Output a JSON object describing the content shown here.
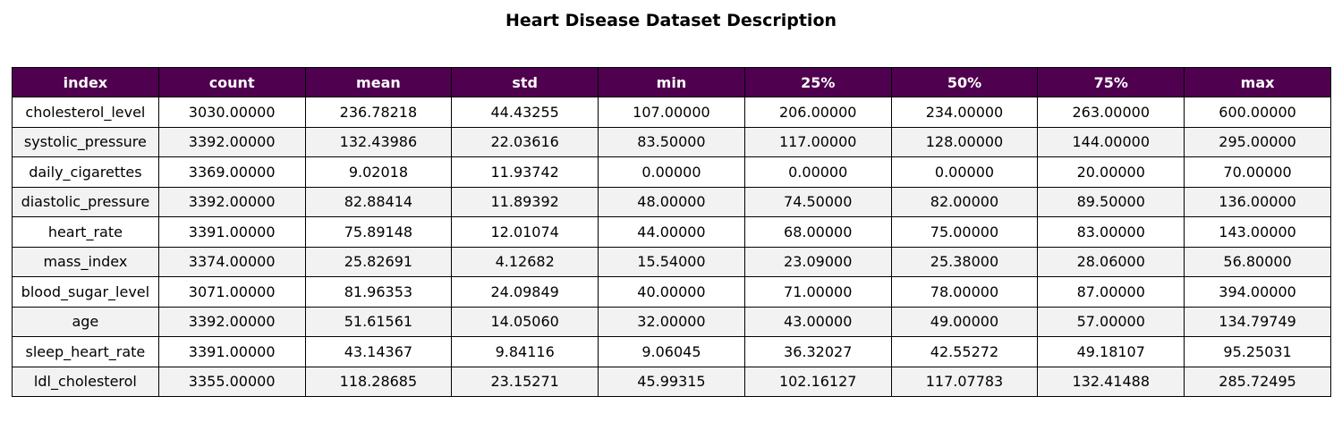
{
  "chart_data": {
    "type": "table",
    "title": "Heart Disease Dataset Description",
    "columns": [
      "index",
      "count",
      "mean",
      "std",
      "min",
      "25%",
      "50%",
      "75%",
      "max"
    ],
    "rows": [
      [
        "cholesterol_level",
        "3030.00000",
        "236.78218",
        "44.43255",
        "107.00000",
        "206.00000",
        "234.00000",
        "263.00000",
        "600.00000"
      ],
      [
        "systolic_pressure",
        "3392.00000",
        "132.43986",
        "22.03616",
        "83.50000",
        "117.00000",
        "128.00000",
        "144.00000",
        "295.00000"
      ],
      [
        "daily_cigarettes",
        "3369.00000",
        "9.02018",
        "11.93742",
        "0.00000",
        "0.00000",
        "0.00000",
        "20.00000",
        "70.00000"
      ],
      [
        "diastolic_pressure",
        "3392.00000",
        "82.88414",
        "11.89392",
        "48.00000",
        "74.50000",
        "82.00000",
        "89.50000",
        "136.00000"
      ],
      [
        "heart_rate",
        "3391.00000",
        "75.89148",
        "12.01074",
        "44.00000",
        "68.00000",
        "75.00000",
        "83.00000",
        "143.00000"
      ],
      [
        "mass_index",
        "3374.00000",
        "25.82691",
        "4.12682",
        "15.54000",
        "23.09000",
        "25.38000",
        "28.06000",
        "56.80000"
      ],
      [
        "blood_sugar_level",
        "3071.00000",
        "81.96353",
        "24.09849",
        "40.00000",
        "71.00000",
        "78.00000",
        "87.00000",
        "394.00000"
      ],
      [
        "age",
        "3392.00000",
        "51.61561",
        "14.05060",
        "32.00000",
        "43.00000",
        "49.00000",
        "57.00000",
        "134.79749"
      ],
      [
        "sleep_heart_rate",
        "3391.00000",
        "43.14367",
        "9.84116",
        "9.06045",
        "36.32027",
        "42.55272",
        "49.18107",
        "95.25031"
      ],
      [
        "ldl_cholesterol",
        "3355.00000",
        "118.28685",
        "23.15271",
        "45.99315",
        "102.16127",
        "117.07783",
        "132.41488",
        "285.72495"
      ]
    ],
    "header_color": "#4f004f",
    "header_text_color": "#ffffff",
    "row_colors": [
      "#ffffff",
      "#f2f2f2"
    ],
    "border_color": "#000000"
  }
}
